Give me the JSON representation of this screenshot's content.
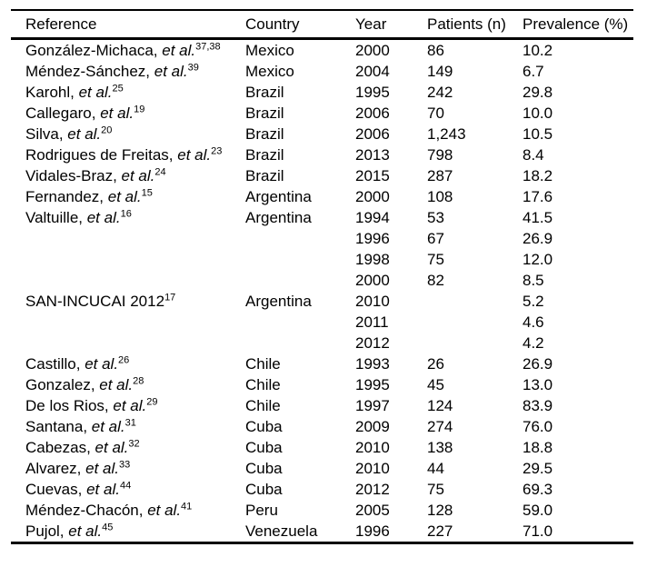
{
  "colors": {
    "text": "#000000",
    "background": "#ffffff",
    "rule": "#000000"
  },
  "table": {
    "et_al_text": "et al.",
    "columns": [
      "Reference",
      "Country",
      "Year",
      "Patients (n)",
      "Prevalence (%)"
    ],
    "rows": [
      {
        "name": "González-Michaca",
        "et_al": true,
        "sup": "37,38",
        "country": "Mexico",
        "year": "2000",
        "patients": "86",
        "prevalence": "10.2"
      },
      {
        "name": "Méndez-Sánchez",
        "et_al": true,
        "sup": "39",
        "country": "Mexico",
        "year": "2004",
        "patients": "149",
        "prevalence": "6.7"
      },
      {
        "name": "Karohl",
        "et_al": true,
        "sup": "25",
        "country": "Brazil",
        "year": "1995",
        "patients": "242",
        "prevalence": "29.8"
      },
      {
        "name": "Callegaro",
        "et_al": true,
        "sup": "19",
        "country": "Brazil",
        "year": "2006",
        "patients": "70",
        "prevalence": "10.0"
      },
      {
        "name": "Silva",
        "et_al": true,
        "sup": "20",
        "country": "Brazil",
        "year": "2006",
        "patients": "1,243",
        "prevalence": "10.5"
      },
      {
        "name": "Rodrigues de Freitas",
        "et_al": true,
        "sup": "23",
        "country": "Brazil",
        "year": "2013",
        "patients": "798",
        "prevalence": "8.4"
      },
      {
        "name": "Vidales-Braz",
        "et_al": true,
        "sup": "24",
        "country": "Brazil",
        "year": "2015",
        "patients": "287",
        "prevalence": "18.2"
      },
      {
        "name": "Fernandez",
        "et_al": true,
        "sup": "15",
        "country": "Argentina",
        "year": "2000",
        "patients": "108",
        "prevalence": "17.6"
      },
      {
        "name": "Valtuille",
        "et_al": true,
        "sup": "16",
        "country": "Argentina",
        "year": "1994",
        "patients": "53",
        "prevalence": "41.5"
      },
      {
        "name": "",
        "et_al": false,
        "sup": "",
        "country": "",
        "year": "1996",
        "patients": "67",
        "prevalence": "26.9"
      },
      {
        "name": "",
        "et_al": false,
        "sup": "",
        "country": "",
        "year": "1998",
        "patients": "75",
        "prevalence": "12.0"
      },
      {
        "name": "",
        "et_al": false,
        "sup": "",
        "country": "",
        "year": "2000",
        "patients": "82",
        "prevalence": "8.5"
      },
      {
        "name": "SAN-INCUCAI 2012",
        "et_al": false,
        "sup": "17",
        "country": "Argentina",
        "year": "2010",
        "patients": "",
        "prevalence": "5.2"
      },
      {
        "name": "",
        "et_al": false,
        "sup": "",
        "country": "",
        "year": "2011",
        "patients": "",
        "prevalence": "4.6"
      },
      {
        "name": "",
        "et_al": false,
        "sup": "",
        "country": "",
        "year": "2012",
        "patients": "",
        "prevalence": "4.2"
      },
      {
        "name": "Castillo",
        "et_al": true,
        "sup": "26",
        "country": "Chile",
        "year": "1993",
        "patients": "26",
        "prevalence": "26.9"
      },
      {
        "name": "Gonzalez",
        "et_al": true,
        "sup": "28",
        "country": "Chile",
        "year": "1995",
        "patients": "45",
        "prevalence": "13.0"
      },
      {
        "name": "De los Rios",
        "et_al": true,
        "sup": "29",
        "country": "Chile",
        "year": "1997",
        "patients": "124",
        "prevalence": "83.9"
      },
      {
        "name": "Santana",
        "et_al": true,
        "sup": "31",
        "country": "Cuba",
        "year": "2009",
        "patients": "274",
        "prevalence": "76.0"
      },
      {
        "name": "Cabezas",
        "et_al": true,
        "sup": "32",
        "country": "Cuba",
        "year": "2010",
        "patients": "138",
        "prevalence": "18.8"
      },
      {
        "name": "Alvarez",
        "et_al": true,
        "sup": "33",
        "country": "Cuba",
        "year": "2010",
        "patients": "44",
        "prevalence": "29.5"
      },
      {
        "name": "Cuevas",
        "et_al": true,
        "sup": "44",
        "country": "Cuba",
        "year": "2012",
        "patients": "75",
        "prevalence": "69.3"
      },
      {
        "name": "Méndez-Chacón",
        "et_al": true,
        "sup": "41",
        "country": "Peru",
        "year": "2005",
        "patients": "128",
        "prevalence": "59.0"
      },
      {
        "name": "Pujol",
        "et_al": true,
        "sup": "45",
        "country": "Venezuela",
        "year": "1996",
        "patients": "227",
        "prevalence": "71.0"
      }
    ]
  }
}
